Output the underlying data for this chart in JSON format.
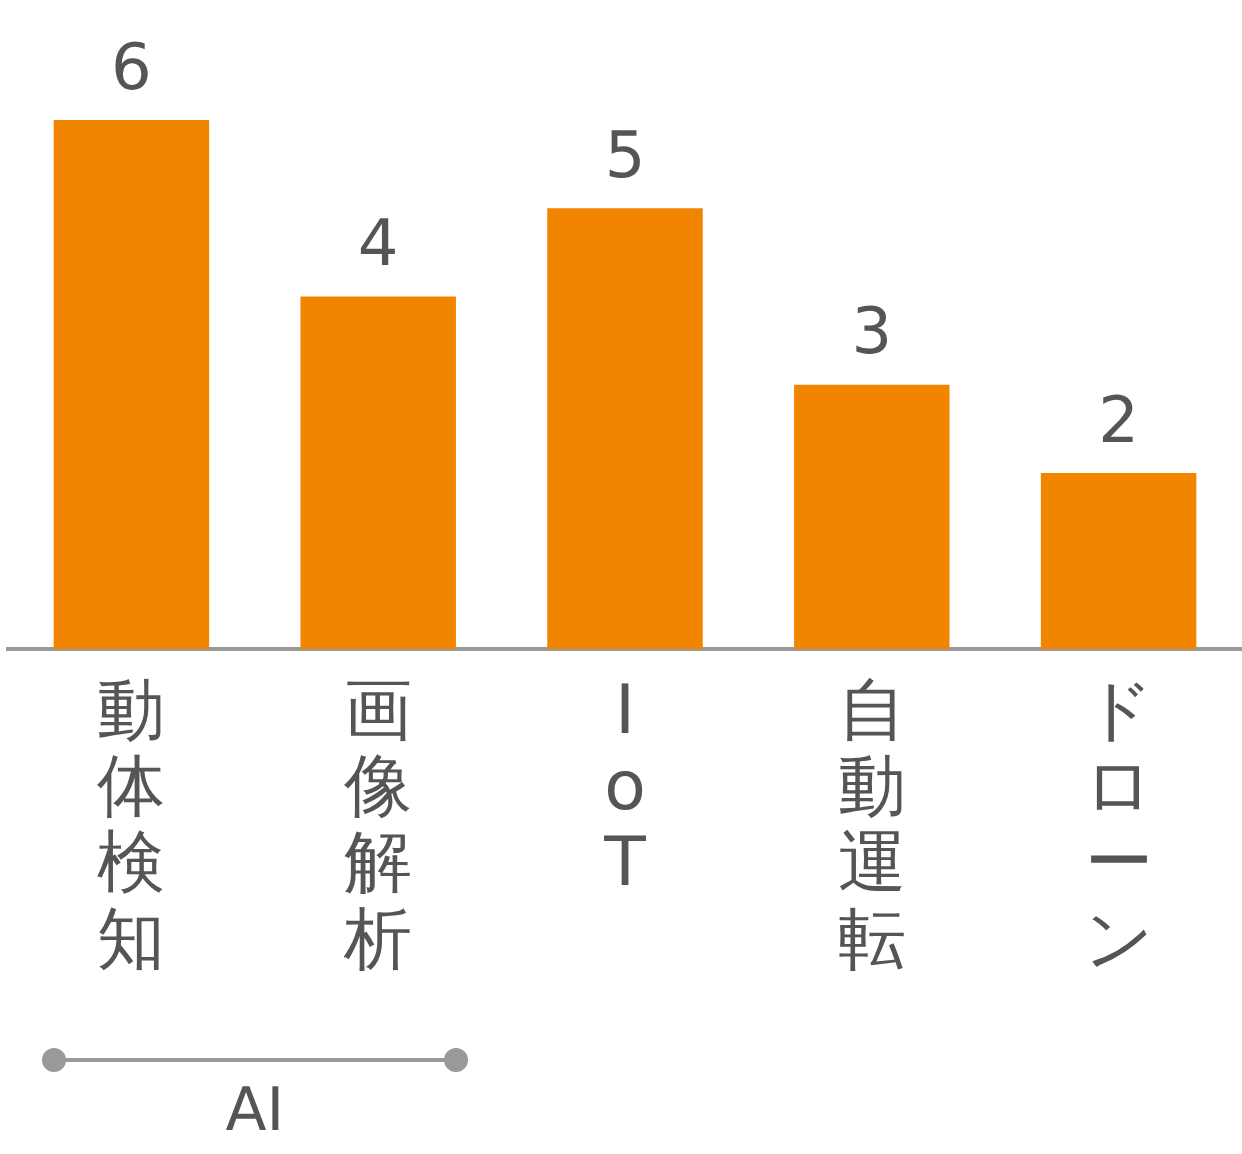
{
  "chart_data": {
    "type": "bar",
    "categories": [
      "動体検知",
      "画像解析",
      "IoT",
      "自動運転",
      "ドローン"
    ],
    "values": [
      6,
      4,
      5,
      3,
      2
    ],
    "color": "#f28500",
    "data_labels": true,
    "annotations": [
      "AI"
    ]
  }
}
